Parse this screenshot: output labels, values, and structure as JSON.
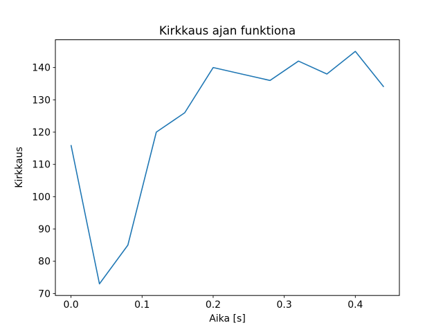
{
  "figure": {
    "background_color": "#ffffff",
    "frame_color": "#000000"
  },
  "chart_data": {
    "type": "line",
    "title": "Kirkkaus ajan funktiona",
    "xlabel": "Aika [s]",
    "ylabel": "Kirkkaus",
    "x": [
      0.0,
      0.04,
      0.08,
      0.12,
      0.16,
      0.2,
      0.24,
      0.28,
      0.32,
      0.36,
      0.4,
      0.44
    ],
    "y": [
      116,
      73,
      85,
      120,
      126,
      140,
      138,
      136,
      142,
      138,
      145,
      134
    ],
    "line_color": "#1f77b4",
    "line_width": 1.6,
    "markers": false,
    "grid": false,
    "legend": false,
    "xlim": [
      -0.022,
      0.462
    ],
    "ylim": [
      69.4,
      148.6
    ],
    "xticks": {
      "values": [
        0.0,
        0.1,
        0.2,
        0.3,
        0.4
      ],
      "labels": [
        "0.0",
        "0.1",
        "0.2",
        "0.3",
        "0.4"
      ]
    },
    "yticks": {
      "values": [
        70,
        80,
        90,
        100,
        110,
        120,
        130,
        140
      ],
      "labels": [
        "70",
        "80",
        "90",
        "100",
        "110",
        "120",
        "130",
        "140"
      ]
    }
  }
}
